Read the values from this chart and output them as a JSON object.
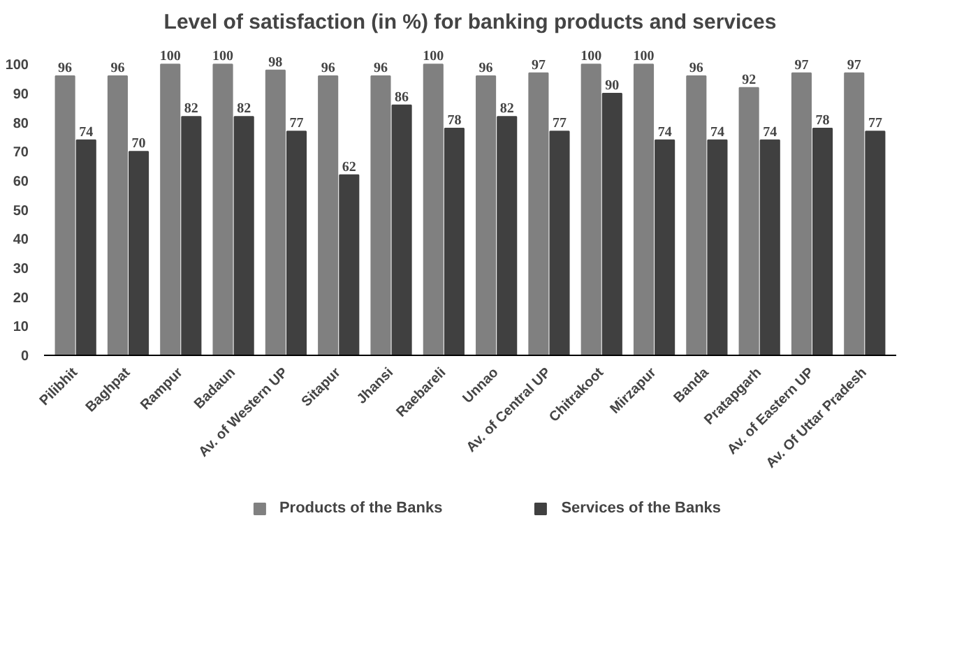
{
  "chart_data": {
    "type": "bar",
    "title": "Level of satisfaction (in %) for banking products and services",
    "categories": [
      "Pilibhit",
      "Baghpat",
      "Rampur",
      "Badaun",
      "Av. of Western UP",
      "Sitapur",
      "Jhansi",
      "Raebareli",
      "Unnao",
      "Av. of Central UP",
      "Chitrakoot",
      "Mirzapur",
      "Banda",
      "Pratapgarh",
      "Av. of Eastern UP",
      "Av. Of Uttar Pradesh"
    ],
    "series": [
      {
        "name": "Products of the Banks",
        "color": "#808080",
        "values": [
          96,
          96,
          100,
          100,
          98,
          96,
          96,
          100,
          96,
          97,
          100,
          100,
          96,
          92,
          97,
          97
        ]
      },
      {
        "name": "Services of the Banks",
        "color": "#404040",
        "values": [
          74,
          70,
          82,
          82,
          77,
          62,
          86,
          78,
          82,
          77,
          90,
          74,
          74,
          74,
          78,
          77
        ]
      }
    ],
    "ylim": [
      0,
      100
    ],
    "yticks": [
      0,
      10,
      20,
      30,
      40,
      50,
      60,
      70,
      80,
      90,
      100
    ],
    "data_labels": true,
    "legend": "bottom",
    "grid": false
  }
}
